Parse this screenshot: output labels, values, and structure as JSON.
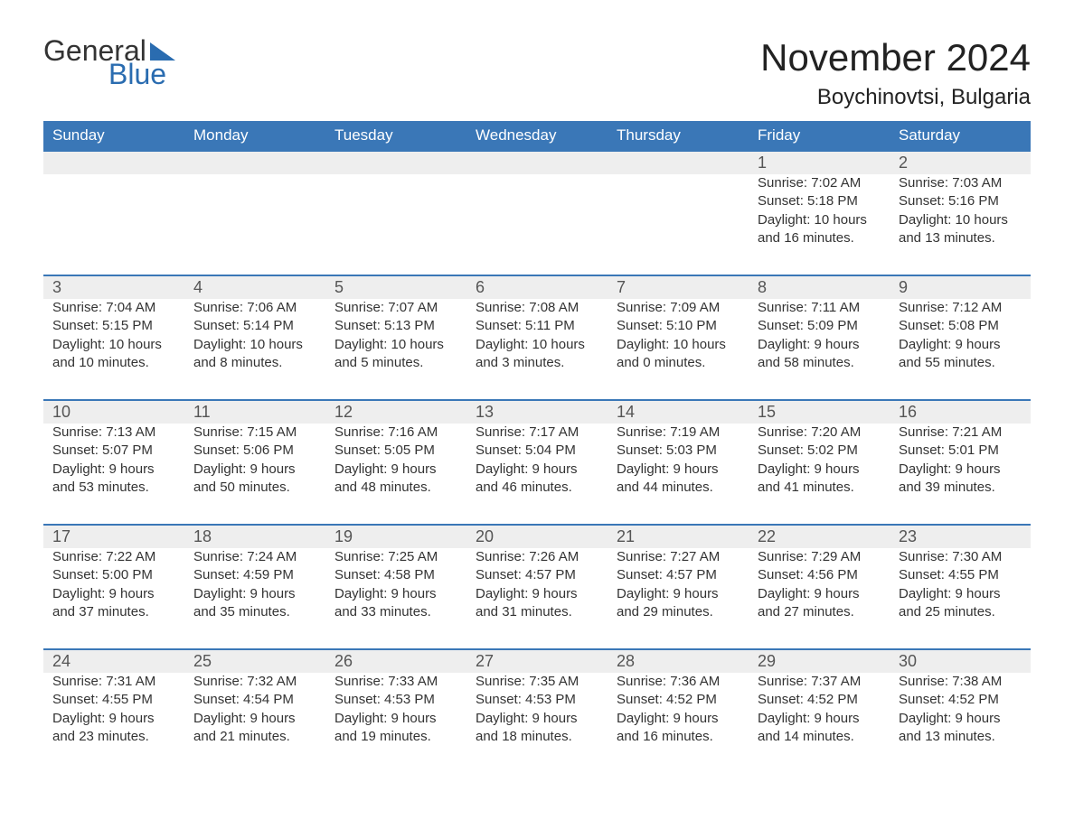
{
  "logo": {
    "text1": "General",
    "text2": "Blue",
    "accent_color": "#2a6cb0"
  },
  "title": "November 2024",
  "location": "Boychinovtsi, Bulgaria",
  "calendar": {
    "header_bg": "#3a77b7",
    "header_text_color": "#ffffff",
    "row_divider_color": "#3a77b7",
    "daynum_bg": "#eeeeee",
    "text_color": "#333333",
    "days_of_week": [
      "Sunday",
      "Monday",
      "Tuesday",
      "Wednesday",
      "Thursday",
      "Friday",
      "Saturday"
    ],
    "weeks": [
      {
        "nums": [
          "",
          "",
          "",
          "",
          "",
          "1",
          "2"
        ],
        "cells": [
          null,
          null,
          null,
          null,
          null,
          {
            "sunrise": "Sunrise: 7:02 AM",
            "sunset": "Sunset: 5:18 PM",
            "dl1": "Daylight: 10 hours",
            "dl2": "and 16 minutes."
          },
          {
            "sunrise": "Sunrise: 7:03 AM",
            "sunset": "Sunset: 5:16 PM",
            "dl1": "Daylight: 10 hours",
            "dl2": "and 13 minutes."
          }
        ]
      },
      {
        "nums": [
          "3",
          "4",
          "5",
          "6",
          "7",
          "8",
          "9"
        ],
        "cells": [
          {
            "sunrise": "Sunrise: 7:04 AM",
            "sunset": "Sunset: 5:15 PM",
            "dl1": "Daylight: 10 hours",
            "dl2": "and 10 minutes."
          },
          {
            "sunrise": "Sunrise: 7:06 AM",
            "sunset": "Sunset: 5:14 PM",
            "dl1": "Daylight: 10 hours",
            "dl2": "and 8 minutes."
          },
          {
            "sunrise": "Sunrise: 7:07 AM",
            "sunset": "Sunset: 5:13 PM",
            "dl1": "Daylight: 10 hours",
            "dl2": "and 5 minutes."
          },
          {
            "sunrise": "Sunrise: 7:08 AM",
            "sunset": "Sunset: 5:11 PM",
            "dl1": "Daylight: 10 hours",
            "dl2": "and 3 minutes."
          },
          {
            "sunrise": "Sunrise: 7:09 AM",
            "sunset": "Sunset: 5:10 PM",
            "dl1": "Daylight: 10 hours",
            "dl2": "and 0 minutes."
          },
          {
            "sunrise": "Sunrise: 7:11 AM",
            "sunset": "Sunset: 5:09 PM",
            "dl1": "Daylight: 9 hours",
            "dl2": "and 58 minutes."
          },
          {
            "sunrise": "Sunrise: 7:12 AM",
            "sunset": "Sunset: 5:08 PM",
            "dl1": "Daylight: 9 hours",
            "dl2": "and 55 minutes."
          }
        ]
      },
      {
        "nums": [
          "10",
          "11",
          "12",
          "13",
          "14",
          "15",
          "16"
        ],
        "cells": [
          {
            "sunrise": "Sunrise: 7:13 AM",
            "sunset": "Sunset: 5:07 PM",
            "dl1": "Daylight: 9 hours",
            "dl2": "and 53 minutes."
          },
          {
            "sunrise": "Sunrise: 7:15 AM",
            "sunset": "Sunset: 5:06 PM",
            "dl1": "Daylight: 9 hours",
            "dl2": "and 50 minutes."
          },
          {
            "sunrise": "Sunrise: 7:16 AM",
            "sunset": "Sunset: 5:05 PM",
            "dl1": "Daylight: 9 hours",
            "dl2": "and 48 minutes."
          },
          {
            "sunrise": "Sunrise: 7:17 AM",
            "sunset": "Sunset: 5:04 PM",
            "dl1": "Daylight: 9 hours",
            "dl2": "and 46 minutes."
          },
          {
            "sunrise": "Sunrise: 7:19 AM",
            "sunset": "Sunset: 5:03 PM",
            "dl1": "Daylight: 9 hours",
            "dl2": "and 44 minutes."
          },
          {
            "sunrise": "Sunrise: 7:20 AM",
            "sunset": "Sunset: 5:02 PM",
            "dl1": "Daylight: 9 hours",
            "dl2": "and 41 minutes."
          },
          {
            "sunrise": "Sunrise: 7:21 AM",
            "sunset": "Sunset: 5:01 PM",
            "dl1": "Daylight: 9 hours",
            "dl2": "and 39 minutes."
          }
        ]
      },
      {
        "nums": [
          "17",
          "18",
          "19",
          "20",
          "21",
          "22",
          "23"
        ],
        "cells": [
          {
            "sunrise": "Sunrise: 7:22 AM",
            "sunset": "Sunset: 5:00 PM",
            "dl1": "Daylight: 9 hours",
            "dl2": "and 37 minutes."
          },
          {
            "sunrise": "Sunrise: 7:24 AM",
            "sunset": "Sunset: 4:59 PM",
            "dl1": "Daylight: 9 hours",
            "dl2": "and 35 minutes."
          },
          {
            "sunrise": "Sunrise: 7:25 AM",
            "sunset": "Sunset: 4:58 PM",
            "dl1": "Daylight: 9 hours",
            "dl2": "and 33 minutes."
          },
          {
            "sunrise": "Sunrise: 7:26 AM",
            "sunset": "Sunset: 4:57 PM",
            "dl1": "Daylight: 9 hours",
            "dl2": "and 31 minutes."
          },
          {
            "sunrise": "Sunrise: 7:27 AM",
            "sunset": "Sunset: 4:57 PM",
            "dl1": "Daylight: 9 hours",
            "dl2": "and 29 minutes."
          },
          {
            "sunrise": "Sunrise: 7:29 AM",
            "sunset": "Sunset: 4:56 PM",
            "dl1": "Daylight: 9 hours",
            "dl2": "and 27 minutes."
          },
          {
            "sunrise": "Sunrise: 7:30 AM",
            "sunset": "Sunset: 4:55 PM",
            "dl1": "Daylight: 9 hours",
            "dl2": "and 25 minutes."
          }
        ]
      },
      {
        "nums": [
          "24",
          "25",
          "26",
          "27",
          "28",
          "29",
          "30"
        ],
        "cells": [
          {
            "sunrise": "Sunrise: 7:31 AM",
            "sunset": "Sunset: 4:55 PM",
            "dl1": "Daylight: 9 hours",
            "dl2": "and 23 minutes."
          },
          {
            "sunrise": "Sunrise: 7:32 AM",
            "sunset": "Sunset: 4:54 PM",
            "dl1": "Daylight: 9 hours",
            "dl2": "and 21 minutes."
          },
          {
            "sunrise": "Sunrise: 7:33 AM",
            "sunset": "Sunset: 4:53 PM",
            "dl1": "Daylight: 9 hours",
            "dl2": "and 19 minutes."
          },
          {
            "sunrise": "Sunrise: 7:35 AM",
            "sunset": "Sunset: 4:53 PM",
            "dl1": "Daylight: 9 hours",
            "dl2": "and 18 minutes."
          },
          {
            "sunrise": "Sunrise: 7:36 AM",
            "sunset": "Sunset: 4:52 PM",
            "dl1": "Daylight: 9 hours",
            "dl2": "and 16 minutes."
          },
          {
            "sunrise": "Sunrise: 7:37 AM",
            "sunset": "Sunset: 4:52 PM",
            "dl1": "Daylight: 9 hours",
            "dl2": "and 14 minutes."
          },
          {
            "sunrise": "Sunrise: 7:38 AM",
            "sunset": "Sunset: 4:52 PM",
            "dl1": "Daylight: 9 hours",
            "dl2": "and 13 minutes."
          }
        ]
      }
    ]
  }
}
